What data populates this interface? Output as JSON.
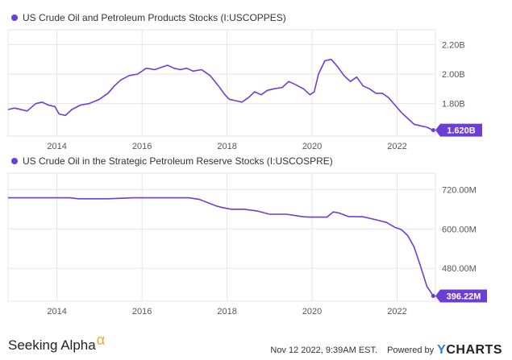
{
  "colors": {
    "series": "#6b3fd4",
    "grid": "#e5e5e5",
    "axis_text": "#555555"
  },
  "chart_data": [
    {
      "type": "line",
      "legend": "US Crude Oil and Petroleum Products Stocks (I:USCOPPES)",
      "last_value_label": "1.620B",
      "x_range": [
        2012.85,
        2022.9
      ],
      "x_ticks": [
        2014,
        2016,
        2018,
        2020,
        2022
      ],
      "x_tick_labels": [
        "2014",
        "2016",
        "2018",
        "2020",
        "2022"
      ],
      "y_range": [
        1.58,
        2.3
      ],
      "y_ticks": [
        1.8,
        2.0,
        2.2
      ],
      "y_tick_labels": [
        "1.80B",
        "2.00B",
        "2.20B"
      ],
      "y_unit": "billion barrels",
      "series": [
        {
          "x": [
            2012.85,
            2013.0,
            2013.3,
            2013.5,
            2013.65,
            2013.8,
            2013.95,
            2014.05,
            2014.2,
            2014.35,
            2014.55,
            2014.75,
            2015.0,
            2015.2,
            2015.35,
            2015.5,
            2015.7,
            2015.9,
            2016.1,
            2016.3,
            2016.5,
            2016.6,
            2016.75,
            2016.9,
            2017.05,
            2017.2,
            2017.4,
            2017.6,
            2017.8,
            2017.95,
            2018.05,
            2018.2,
            2018.35,
            2018.5,
            2018.65,
            2018.8,
            2018.95,
            2019.1,
            2019.3,
            2019.45,
            2019.6,
            2019.8,
            2019.95,
            2020.05,
            2020.15,
            2020.3,
            2020.45,
            2020.6,
            2020.75,
            2020.9,
            2021.05,
            2021.2,
            2021.35,
            2021.5,
            2021.65,
            2021.8,
            2021.95,
            2022.1,
            2022.25,
            2022.4,
            2022.55,
            2022.7,
            2022.85
          ],
          "values": [
            1.76,
            1.77,
            1.75,
            1.8,
            1.81,
            1.79,
            1.78,
            1.73,
            1.72,
            1.76,
            1.79,
            1.8,
            1.83,
            1.87,
            1.92,
            1.96,
            1.99,
            2.0,
            2.04,
            2.03,
            2.05,
            2.06,
            2.04,
            2.03,
            2.04,
            2.02,
            2.03,
            1.99,
            1.92,
            1.86,
            1.83,
            1.82,
            1.81,
            1.84,
            1.88,
            1.86,
            1.89,
            1.9,
            1.91,
            1.95,
            1.93,
            1.9,
            1.86,
            1.88,
            2.0,
            2.09,
            2.1,
            2.05,
            1.99,
            1.95,
            1.98,
            1.92,
            1.9,
            1.87,
            1.87,
            1.84,
            1.79,
            1.74,
            1.7,
            1.66,
            1.65,
            1.64,
            1.62
          ]
        }
      ]
    },
    {
      "type": "line",
      "legend": "US Crude Oil in the Strategic Petroleum Reserve Stocks (I:USCOSPRE)",
      "last_value_label": "396.22M",
      "x_range": [
        2012.85,
        2022.9
      ],
      "x_ticks": [
        2014,
        2016,
        2018,
        2020,
        2022
      ],
      "x_tick_labels": [
        "2014",
        "2016",
        "2018",
        "2020",
        "2022"
      ],
      "y_range": [
        380,
        770
      ],
      "y_ticks": [
        480,
        600,
        720
      ],
      "y_tick_labels": [
        "480.00M",
        "600.00M",
        "720.00M"
      ],
      "y_unit": "million barrels",
      "series": [
        {
          "x": [
            2012.85,
            2014.0,
            2014.3,
            2014.5,
            2014.8,
            2015.2,
            2015.8,
            2016.5,
            2017.1,
            2017.35,
            2017.55,
            2017.75,
            2017.9,
            2018.1,
            2018.4,
            2018.7,
            2019.0,
            2019.4,
            2019.8,
            2019.95,
            2020.35,
            2020.5,
            2020.65,
            2020.85,
            2021.2,
            2021.5,
            2021.75,
            2021.95,
            2022.1,
            2022.25,
            2022.4,
            2022.55,
            2022.7,
            2022.85
          ],
          "values": [
            695,
            695,
            695,
            692,
            692,
            692,
            695,
            695,
            695,
            690,
            680,
            670,
            665,
            660,
            660,
            655,
            645,
            645,
            637,
            636,
            636,
            652,
            648,
            638,
            637,
            628,
            620,
            605,
            598,
            580,
            545,
            487,
            425,
            396
          ]
        }
      ]
    }
  ],
  "footer": {
    "brand": "Seeking Alpha",
    "brand_mark": "α",
    "timestamp": "Nov 12 2022, 9:39AM EST.",
    "powered_by": "Powered by",
    "provider_mark": "Y",
    "provider_rest": "CHARTS"
  }
}
